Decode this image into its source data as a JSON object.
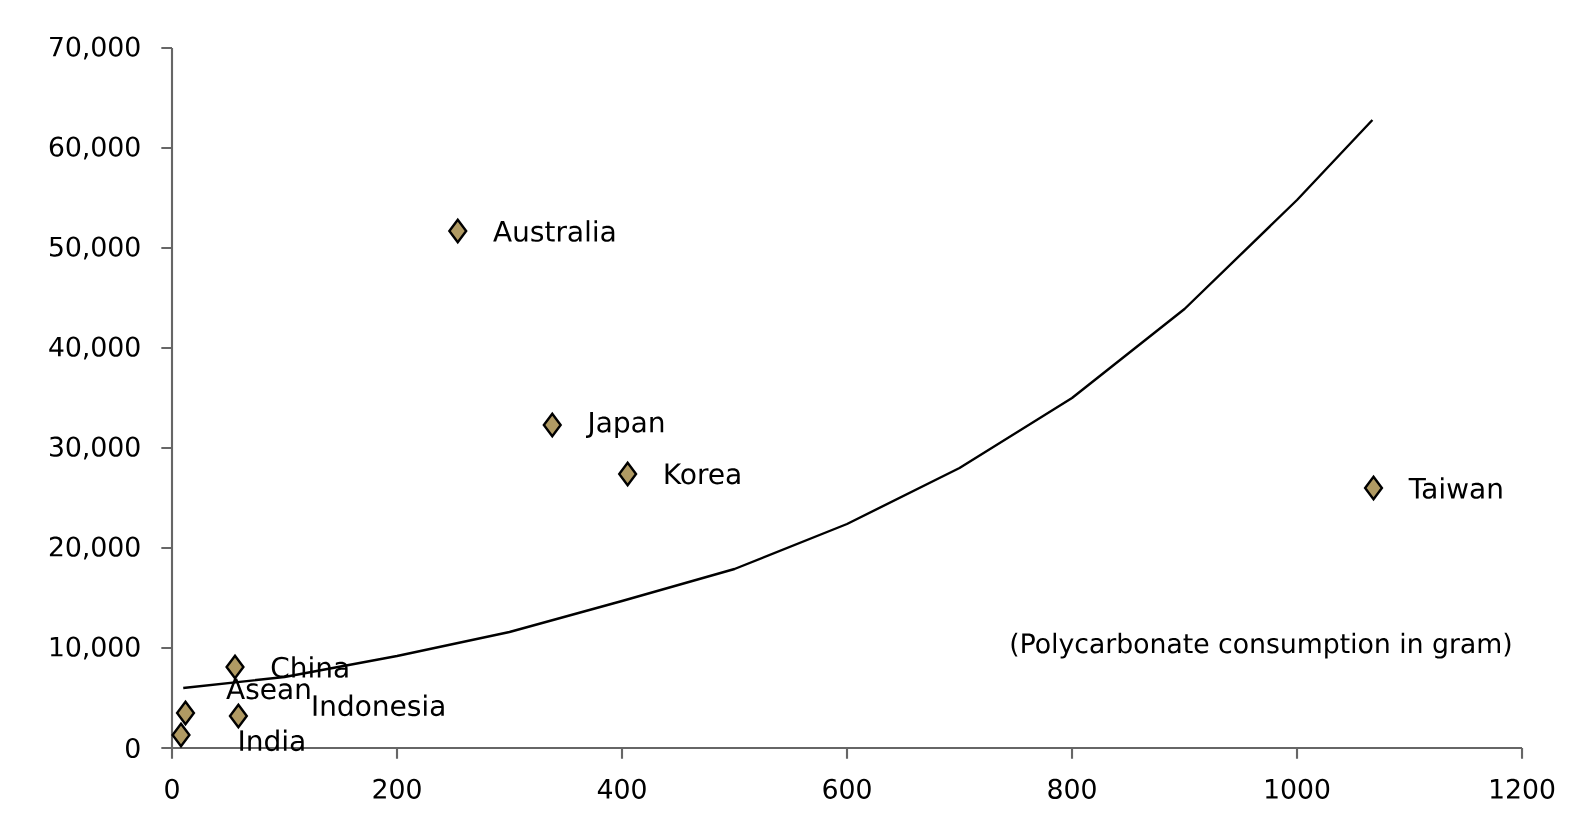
{
  "chart_data": {
    "type": "scatter",
    "xlabel": "(Polycarbonate consumption in gram)",
    "xlim": [
      0,
      1200
    ],
    "xticks": [
      0,
      200,
      400,
      600,
      800,
      1000,
      1200
    ],
    "ylim": [
      0,
      70000
    ],
    "yticks": [
      0,
      {
        "value": 10000,
        "label": "10,000"
      },
      {
        "value": 20000,
        "label": "20,000"
      },
      {
        "value": 30000,
        "label": "30,000"
      },
      {
        "value": 40000,
        "label": "40,000"
      },
      {
        "value": 50000,
        "label": "50,000"
      },
      {
        "value": 60000,
        "label": "60,000"
      },
      {
        "value": 70000,
        "label": "70,000"
      }
    ],
    "grid": false,
    "marker": "diamond",
    "series": [
      {
        "type": "line",
        "color": "#000000",
        "marker": "none",
        "line_style": "solid",
        "x": [
          10,
          100,
          200,
          300,
          400,
          500,
          600,
          700,
          800,
          900,
          1000,
          1067
        ],
        "values": [
          6000,
          7100,
          9200,
          11600,
          14700,
          17900,
          22400,
          28000,
          35000,
          43900,
          54800,
          62800
        ]
      },
      {
        "color": "#b09a63",
        "x": [
          254,
          338,
          405,
          1068,
          56,
          12,
          59,
          8
        ],
        "values": [
          51700,
          32300,
          27400,
          26000,
          8100,
          3500,
          3200,
          1300
        ]
      }
    ],
    "annotations": [
      {
        "text": "Australia",
        "x": 254,
        "y": 51700
      },
      {
        "text": "Japan",
        "x": 338,
        "y": 32300
      },
      {
        "text": "Korea",
        "x": 405,
        "y": 27400
      },
      {
        "text": "Taiwan",
        "x": 1068,
        "y": 26000
      },
      {
        "text": "China",
        "x": 56,
        "y": 8100
      },
      {
        "text": "Asean",
        "x": 12,
        "y": 3500
      },
      {
        "text": "Indonesia",
        "x": 59,
        "y": 3200
      },
      {
        "text": "India",
        "x": 8,
        "y": 1300
      }
    ]
  }
}
